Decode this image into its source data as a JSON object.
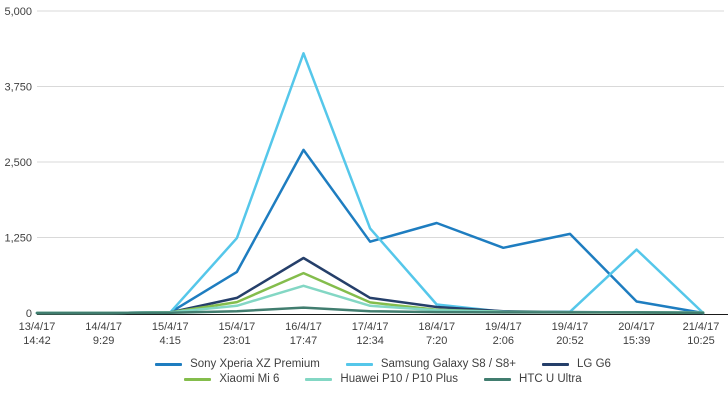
{
  "chart_data": {
    "type": "line",
    "title": "",
    "xlabel": "",
    "ylabel": "",
    "ylim": [
      0,
      5000
    ],
    "ytick_values": [
      0,
      1250,
      2500,
      3750,
      5000
    ],
    "ytick_labels": [
      "0",
      "1,250",
      "2,500",
      "3,750",
      "5,000"
    ],
    "grid": "horizontal",
    "legend_position": "bottom",
    "categories": [
      {
        "date": "13/4/17",
        "time": "14:42"
      },
      {
        "date": "14/4/17",
        "time": "9:29"
      },
      {
        "date": "15/4/17",
        "time": "4:15"
      },
      {
        "date": "15/4/17",
        "time": "23:01"
      },
      {
        "date": "16/4/17",
        "time": "17:47"
      },
      {
        "date": "17/4/17",
        "time": "12:34"
      },
      {
        "date": "18/4/17",
        "time": "7:20"
      },
      {
        "date": "19/4/17",
        "time": "2:06"
      },
      {
        "date": "19/4/17",
        "time": "20:52"
      },
      {
        "date": "20/4/17",
        "time": "15:39"
      },
      {
        "date": "21/4/17",
        "time": "10:25"
      }
    ],
    "series": [
      {
        "name": "Sony Xperia XZ Premium",
        "color": "#1e7dc0",
        "values": [
          0,
          0,
          10,
          680,
          2700,
          1180,
          1490,
          1080,
          1310,
          190,
          0
        ]
      },
      {
        "name": "Samsung Galaxy S8 / S8+",
        "color": "#55c7ea",
        "values": [
          0,
          0,
          10,
          1240,
          4300,
          1400,
          140,
          20,
          20,
          1050,
          0
        ]
      },
      {
        "name": "LG G6",
        "color": "#253f6a",
        "values": [
          0,
          0,
          10,
          250,
          910,
          250,
          100,
          30,
          15,
          10,
          0
        ]
      },
      {
        "name": "Xiaomi Mi 6",
        "color": "#84bd4c",
        "values": [
          0,
          0,
          10,
          180,
          660,
          175,
          55,
          20,
          10,
          10,
          5
        ]
      },
      {
        "name": "Huawei P10 / P10 Plus",
        "color": "#83d7c4",
        "values": [
          0,
          0,
          10,
          120,
          450,
          120,
          45,
          20,
          15,
          10,
          10
        ]
      },
      {
        "name": "HTC U Ultra",
        "color": "#417d6f",
        "values": [
          0,
          0,
          5,
          30,
          90,
          30,
          15,
          10,
          10,
          10,
          5
        ]
      }
    ],
    "legend_rows": [
      [
        0,
        1,
        2
      ],
      [
        3,
        4,
        5
      ]
    ]
  },
  "style_colors": {
    "gridline": "#d9d9d9",
    "axis": "#1a1a1a",
    "tick_text": "#404040",
    "background": "#ffffff"
  }
}
